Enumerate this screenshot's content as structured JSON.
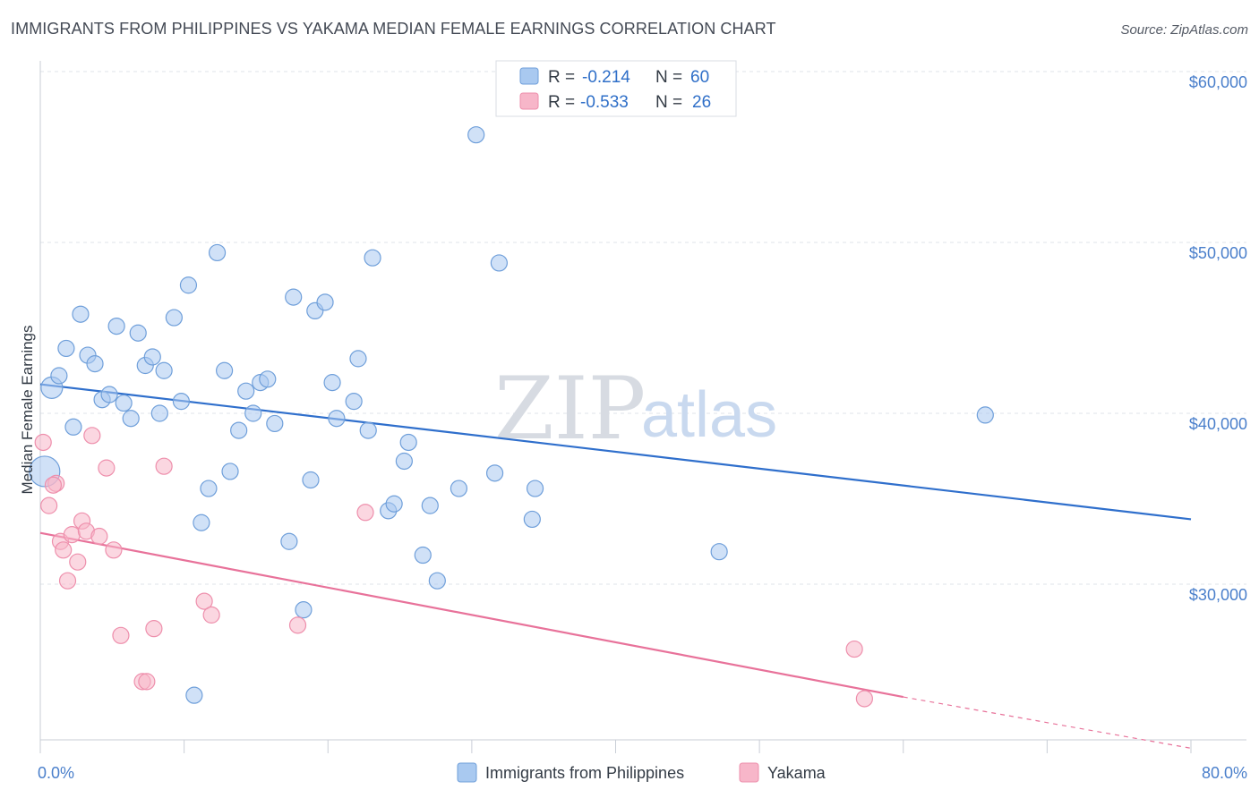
{
  "header": {
    "title": "IMMIGRANTS FROM PHILIPPINES VS YAKAMA MEDIAN FEMALE EARNINGS CORRELATION CHART",
    "source": "Source: ZipAtlas.com"
  },
  "watermark": {
    "part1": "ZIP",
    "part2": "atlas"
  },
  "legend_top": [
    {
      "r_label": "R =",
      "r_value": "-0.214",
      "n_label": "N =",
      "n_value": "60",
      "color": "#a9c9f0"
    },
    {
      "r_label": "R =",
      "r_value": "-0.533",
      "n_label": "N =",
      "n_value": "26",
      "color": "#f7b6c9"
    }
  ],
  "legend_bottom": [
    {
      "label": "Immigrants from Philippines",
      "color": "#a9c9f0"
    },
    {
      "label": "Yakama",
      "color": "#f7b6c9"
    }
  ],
  "chart_data": {
    "type": "scatter",
    "title": "IMMIGRANTS FROM PHILIPPINES VS YAKAMA MEDIAN FEMALE EARNINGS CORRELATION CHART",
    "xlabel": "",
    "ylabel": "Median Female Earnings",
    "xlim": [
      0,
      80
    ],
    "ylim": [
      20000,
      62000
    ],
    "x_tick_labels": [
      {
        "value": 0,
        "label": "0.0%"
      },
      {
        "value": 80,
        "label": "80.0%"
      }
    ],
    "y_tick_labels": [
      {
        "value": 30000,
        "label": "$30,000"
      },
      {
        "value": 40000,
        "label": "$40,000"
      },
      {
        "value": 50000,
        "label": "$50,000"
      },
      {
        "value": 60000,
        "label": "$60,000"
      }
    ],
    "grid": true,
    "legend_position": "top-center",
    "series": [
      {
        "name": "Immigrants from Philippines",
        "color": "#a9c9f0",
        "stroke": "#6f9fda",
        "trend": {
          "x0": 0,
          "y0": 41700,
          "x1": 80,
          "y1": 33800,
          "color": "#2f6fcc"
        },
        "points": [
          [
            0.8,
            41500
          ],
          [
            1.3,
            42200
          ],
          [
            1.8,
            43800
          ],
          [
            2.3,
            39200
          ],
          [
            2.8,
            45800
          ],
          [
            3.3,
            43400
          ],
          [
            3.8,
            42900
          ],
          [
            4.3,
            40800
          ],
          [
            4.8,
            41100
          ],
          [
            5.3,
            45100
          ],
          [
            5.8,
            40600
          ],
          [
            6.3,
            39700
          ],
          [
            6.8,
            44700
          ],
          [
            7.3,
            42800
          ],
          [
            7.8,
            43300
          ],
          [
            8.3,
            40000
          ],
          [
            8.6,
            42500
          ],
          [
            9.3,
            45600
          ],
          [
            9.8,
            40700
          ],
          [
            10.3,
            47500
          ],
          [
            11.2,
            33600
          ],
          [
            11.7,
            35600
          ],
          [
            12.3,
            49400
          ],
          [
            12.8,
            42500
          ],
          [
            13.2,
            36600
          ],
          [
            13.8,
            39000
          ],
          [
            14.3,
            41300
          ],
          [
            14.8,
            40000
          ],
          [
            15.3,
            41800
          ],
          [
            15.8,
            42000
          ],
          [
            16.3,
            39400
          ],
          [
            17.3,
            32500
          ],
          [
            17.6,
            46800
          ],
          [
            18.3,
            28500
          ],
          [
            18.8,
            36100
          ],
          [
            19.1,
            46000
          ],
          [
            19.8,
            46500
          ],
          [
            20.3,
            41800
          ],
          [
            20.6,
            39700
          ],
          [
            21.8,
            40700
          ],
          [
            22.1,
            43200
          ],
          [
            22.8,
            39000
          ],
          [
            23.1,
            49100
          ],
          [
            24.2,
            34300
          ],
          [
            24.6,
            34700
          ],
          [
            25.3,
            37200
          ],
          [
            25.6,
            38300
          ],
          [
            26.6,
            31700
          ],
          [
            27.1,
            34600
          ],
          [
            27.6,
            30200
          ],
          [
            29.1,
            35600
          ],
          [
            30.3,
            56300
          ],
          [
            31.6,
            36500
          ],
          [
            31.9,
            48800
          ],
          [
            34.2,
            33800
          ],
          [
            34.4,
            35600
          ],
          [
            47.2,
            31900
          ],
          [
            65.7,
            39900
          ],
          [
            0.3,
            36600
          ],
          [
            10.7,
            23500
          ]
        ]
      },
      {
        "name": "Yakama",
        "color": "#f7b6c9",
        "stroke": "#ee8fac",
        "trend": {
          "x0": 0,
          "y0": 33000,
          "x1": 60,
          "y1": 23400,
          "x2": 80,
          "y2": 20400,
          "color": "#e8729a"
        },
        "points": [
          [
            0.2,
            38300
          ],
          [
            0.6,
            34600
          ],
          [
            1.1,
            35900
          ],
          [
            1.4,
            32500
          ],
          [
            1.6,
            32000
          ],
          [
            1.9,
            30200
          ],
          [
            2.2,
            32900
          ],
          [
            2.6,
            31300
          ],
          [
            2.9,
            33700
          ],
          [
            3.2,
            33100
          ],
          [
            3.6,
            38700
          ],
          [
            4.6,
            36800
          ],
          [
            5.1,
            32000
          ],
          [
            5.6,
            27000
          ],
          [
            7.1,
            24300
          ],
          [
            7.4,
            24300
          ],
          [
            7.9,
            27400
          ],
          [
            8.6,
            36900
          ],
          [
            11.4,
            29000
          ],
          [
            11.9,
            28200
          ],
          [
            17.9,
            27600
          ],
          [
            22.6,
            34200
          ],
          [
            56.6,
            26200
          ],
          [
            57.3,
            23300
          ],
          [
            0.9,
            35800
          ],
          [
            4.1,
            32800
          ]
        ]
      }
    ]
  }
}
